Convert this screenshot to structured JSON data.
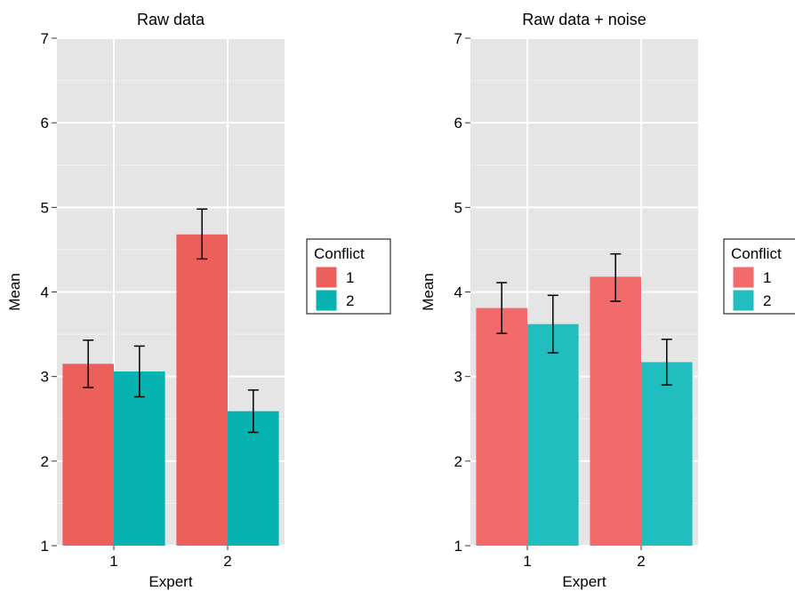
{
  "chart_data": [
    {
      "type": "bar",
      "title": "Raw data",
      "xlabel": "Expert",
      "ylabel": "Mean",
      "categories": [
        "1",
        "2"
      ],
      "ylim": [
        1,
        7
      ],
      "yticks": [
        "1",
        "2",
        "3",
        "4",
        "5",
        "6",
        "7"
      ],
      "legend": {
        "title": "Conflict",
        "position": "right"
      },
      "series": [
        {
          "name": "1",
          "color": "#EC5F5B",
          "values": [
            3.15,
            4.68
          ],
          "err_low": [
            2.87,
            4.39
          ],
          "err_high": [
            3.43,
            4.98
          ]
        },
        {
          "name": "2",
          "color": "#06B3B0",
          "values": [
            3.06,
            2.59
          ],
          "err_low": [
            2.76,
            2.34
          ],
          "err_high": [
            3.36,
            2.84
          ]
        }
      ],
      "grid": true
    },
    {
      "type": "bar",
      "title": "Raw data + noise",
      "xlabel": "Expert",
      "ylabel": "Mean",
      "categories": [
        "1",
        "2"
      ],
      "ylim": [
        1,
        7
      ],
      "yticks": [
        "1",
        "2",
        "3",
        "4",
        "5",
        "6",
        "7"
      ],
      "legend": {
        "title": "Conflict",
        "position": "right"
      },
      "series": [
        {
          "name": "1",
          "color": "#F26A6A",
          "values": [
            3.81,
            4.18
          ],
          "err_low": [
            3.51,
            3.89
          ],
          "err_high": [
            4.11,
            4.45
          ]
        },
        {
          "name": "2",
          "color": "#22BDBE",
          "values": [
            3.62,
            3.17
          ],
          "err_low": [
            3.28,
            2.9
          ],
          "err_high": [
            3.96,
            3.44
          ]
        }
      ],
      "grid": true
    }
  ]
}
